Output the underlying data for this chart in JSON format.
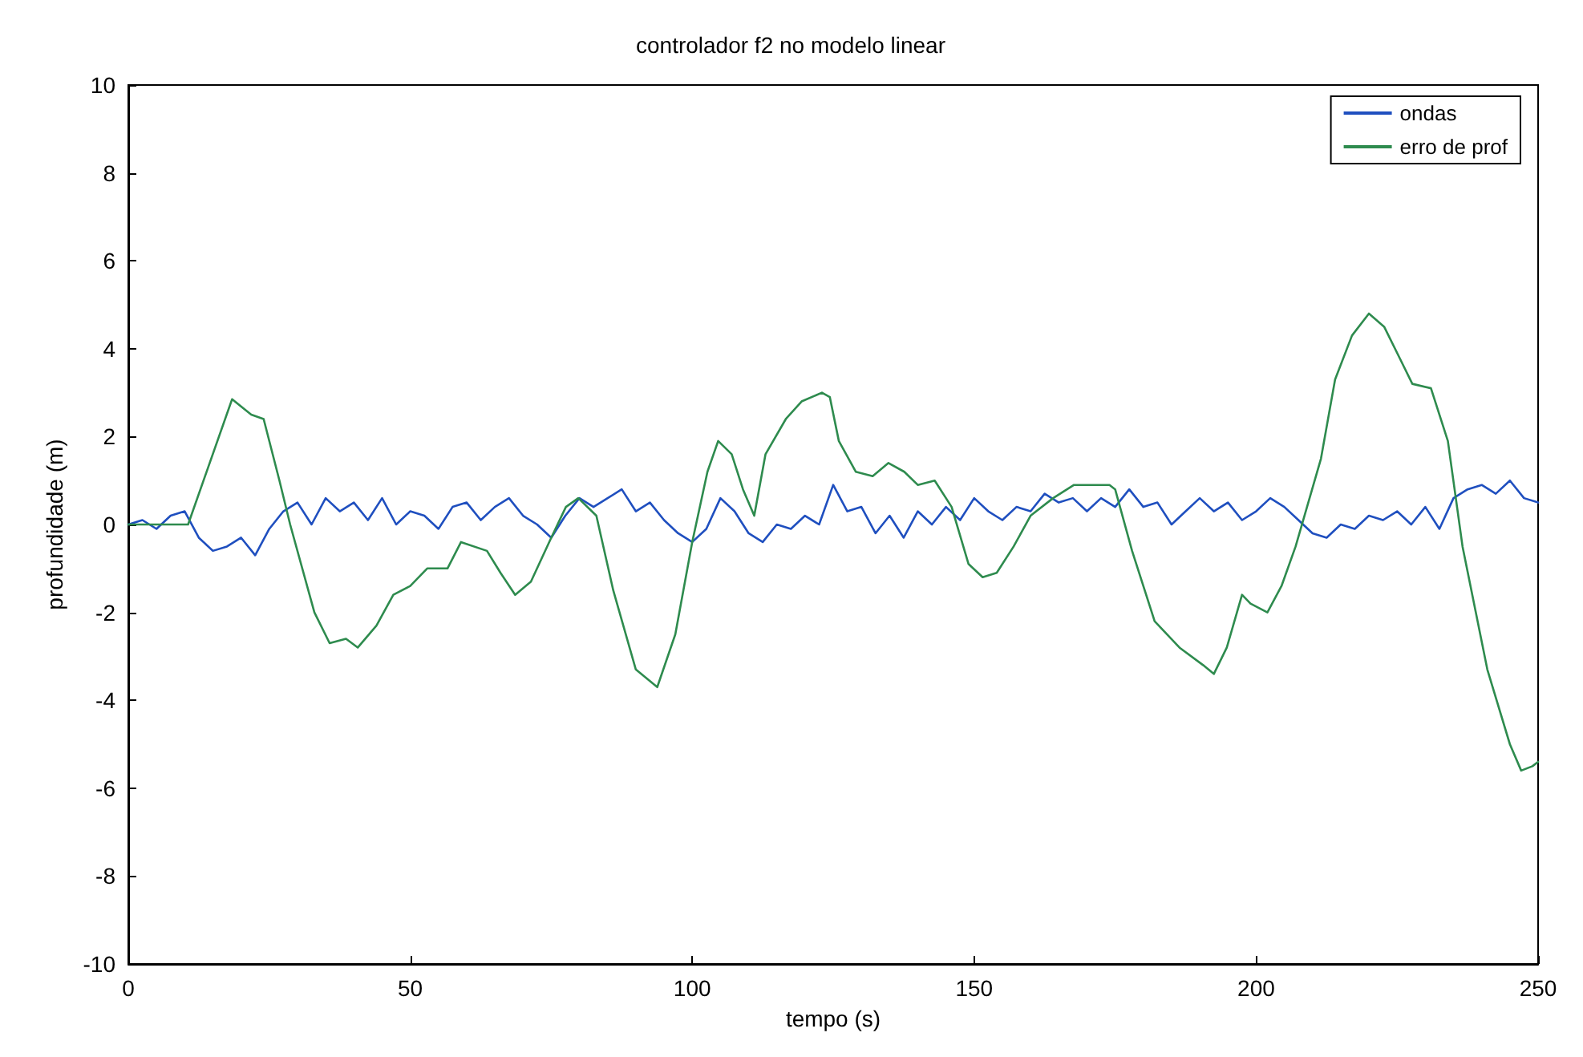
{
  "chart_data": {
    "type": "line",
    "title": "controlador f2 no modelo linear",
    "xlabel": "tempo (s)",
    "ylabel": "profundidade (m)",
    "xlim": [
      0,
      250
    ],
    "xticks": [
      0,
      50,
      100,
      150,
      200,
      250
    ],
    "ylim": [
      -10,
      10
    ],
    "yticks": [
      -10,
      -8,
      -6,
      -4,
      -2,
      0,
      2,
      4,
      6,
      8,
      10
    ],
    "grid": false,
    "legend": "top right",
    "marker": "none",
    "line_style": "solid",
    "series": [
      {
        "name": "ondas",
        "color": "#1f4fbf",
        "x": [
          0,
          2.5,
          5,
          7.5,
          10,
          12.5,
          15,
          17.5,
          20,
          22.5,
          25,
          27.5,
          30,
          32.5,
          35,
          37.5,
          40,
          42.5,
          45,
          47.5,
          50,
          52.5,
          55,
          57.5,
          60,
          62.5,
          65,
          67.5,
          70,
          72.5,
          75,
          77.5,
          80,
          82.5,
          85,
          87.5,
          90,
          92.5,
          95,
          97.5,
          100,
          102.5,
          105,
          107.5,
          110,
          112.5,
          115,
          117.5,
          120,
          122.5,
          125,
          127.5,
          130,
          132.5,
          135,
          137.5,
          140,
          142.5,
          145,
          147.5,
          150,
          152.5,
          155,
          157.5,
          160,
          162.5,
          165,
          167.5,
          170,
          172.5,
          175,
          177.5,
          180,
          182.5,
          185,
          187.5,
          190,
          192.5,
          195,
          197.5,
          200,
          202.5,
          205,
          207.5,
          210,
          212.5,
          215,
          217.5,
          220,
          222.5,
          225,
          227.5,
          230,
          232.5,
          235,
          237.5,
          240,
          242.5,
          245,
          247.5,
          250
        ],
        "values": [
          0,
          0.1,
          -0.1,
          0.2,
          0.3,
          -0.3,
          -0.6,
          -0.5,
          -0.3,
          -0.7,
          -0.1,
          0.3,
          0.5,
          0,
          0.6,
          0.3,
          0.5,
          0.1,
          0.6,
          0,
          0.3,
          0.2,
          -0.1,
          0.4,
          0.5,
          0.1,
          0.4,
          0.6,
          0.2,
          0,
          -0.3,
          0.2,
          0.6,
          0.4,
          0.6,
          0.8,
          0.3,
          0.5,
          0.1,
          -0.2,
          -0.4,
          -0.1,
          0.6,
          0.3,
          -0.2,
          -0.4,
          0,
          -0.1,
          0.2,
          0,
          0.9,
          0.3,
          0.4,
          -0.2,
          0.2,
          -0.3,
          0.3,
          0,
          0.4,
          0.1,
          0.6,
          0.3,
          0.1,
          0.4,
          0.3,
          0.7,
          0.5,
          0.6,
          0.3,
          0.6,
          0.4,
          0.8,
          0.4,
          0.5,
          0,
          0.3,
          0.6,
          0.3,
          0.5,
          0.1,
          0.3,
          0.6,
          0.4,
          0.1,
          -0.2,
          -0.3,
          0,
          -0.1,
          0.2,
          0.1,
          0.3,
          0,
          0.4,
          -0.1,
          0.6,
          0.8,
          0.9,
          0.7,
          1,
          0.6,
          0.5
        ]
      },
      {
        "name": "erro de prof",
        "color": "#2e8b4e",
        "x": [
          0,
          10.6,
          18.4,
          21.8,
          24,
          26.8,
          28.7,
          33,
          35.7,
          38.6,
          40.7,
          44,
          47,
          50,
          53,
          56.6,
          59,
          63.6,
          66,
          68.6,
          71.4,
          75,
          77.6,
          79.8,
          83,
          86,
          90,
          93.8,
          97,
          100,
          102.7,
          104.6,
          107,
          109,
          111,
          113,
          116.6,
          119.4,
          123,
          124.4,
          126,
          129,
          132,
          134.8,
          137.6,
          140,
          143,
          146,
          149,
          151.5,
          154,
          157,
          160,
          164,
          167.7,
          174,
          175,
          178,
          182,
          186.4,
          190.6,
          192.5,
          194.8,
          197.5,
          199,
          202,
          204.5,
          207,
          211.5,
          214,
          217,
          220,
          222.7,
          225.4,
          227.7,
          231,
          234,
          236.6,
          241,
          245,
          247,
          249,
          250
        ],
        "values": [
          0,
          0,
          2.85,
          2.5,
          2.4,
          1,
          0,
          -2,
          -2.7,
          -2.6,
          -2.8,
          -2.3,
          -1.6,
          -1.4,
          -1,
          -1,
          -0.4,
          -0.6,
          -1.1,
          -1.6,
          -1.3,
          -0.3,
          0.4,
          0.6,
          0.2,
          -1.5,
          -3.3,
          -3.7,
          -2.5,
          -0.4,
          1.2,
          1.9,
          1.6,
          0.8,
          0.2,
          1.6,
          2.4,
          2.8,
          3,
          2.9,
          1.9,
          1.2,
          1.1,
          1.4,
          1.2,
          0.9,
          1,
          0.4,
          -0.9,
          -1.2,
          -1.1,
          -0.5,
          0.2,
          0.6,
          0.9,
          0.9,
          0.8,
          -0.6,
          -2.2,
          -2.8,
          -3.2,
          -3.4,
          -2.8,
          -1.6,
          -1.8,
          -2,
          -1.4,
          -0.5,
          1.5,
          3.3,
          4.3,
          4.8,
          4.5,
          3.8,
          3.2,
          3.1,
          1.9,
          -0.5,
          -3.3,
          -5,
          -5.6,
          -5.5,
          -5.4
        ]
      }
    ]
  }
}
